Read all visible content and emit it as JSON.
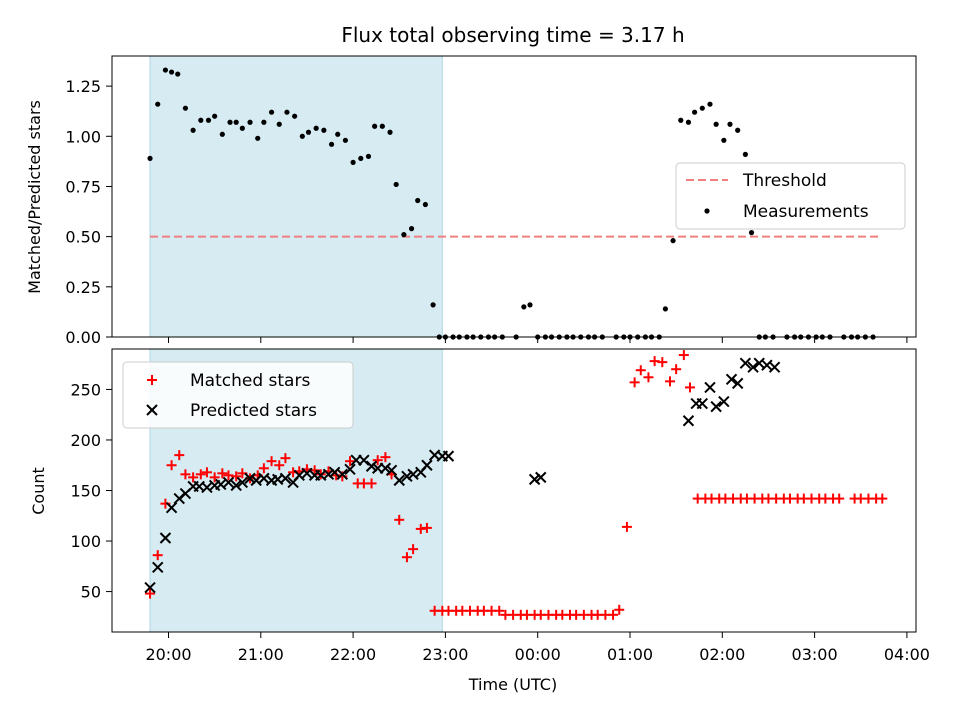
{
  "colors": {
    "shade": "#add8e6",
    "threshold": "#f08080",
    "matched": "#ff0000",
    "predicted": "#000000",
    "measure": "#000000"
  },
  "chart_data": [
    {
      "type": "scatter",
      "title": "Flux total observing time = 3.17 h",
      "xlabel": "",
      "ylabel": "Matched/Predicted stars",
      "ylim": [
        0,
        1.4
      ],
      "yticks": [
        "0.00",
        "0.25",
        "0.50",
        "0.75",
        "1.00",
        "1.25"
      ],
      "shaded_interval": [
        "19:48",
        "22:58"
      ],
      "legend": {
        "placement": "center-right",
        "threshold_label": "Threshold",
        "measurements_label": "Measurements"
      },
      "threshold": {
        "value": 0.5,
        "x_start": "19:48",
        "x_end": "03:42"
      },
      "series": [
        {
          "name": "Measurements",
          "x": [
            "19:48",
            "19:53",
            "19:58",
            "20:02",
            "20:06",
            "20:11",
            "20:16",
            "20:21",
            "20:26",
            "20:30",
            "20:35",
            "20:40",
            "20:44",
            "20:48",
            "20:53",
            "20:58",
            "21:02",
            "21:07",
            "21:12",
            "21:17",
            "21:22",
            "21:27",
            "21:31",
            "21:36",
            "21:41",
            "21:46",
            "21:50",
            "21:55",
            "22:00",
            "22:05",
            "22:10",
            "22:14",
            "22:19",
            "22:24",
            "22:28",
            "22:33",
            "22:38",
            "22:42",
            "22:47",
            "22:52",
            "22:56",
            "23:00",
            "23:05",
            "23:09",
            "23:14",
            "23:18",
            "23:23",
            "23:28",
            "23:32",
            "23:37",
            "23:46",
            "23:51",
            "23:55",
            "00:00",
            "00:05",
            "00:09",
            "00:14",
            "00:19",
            "00:23",
            "00:28",
            "00:33",
            "00:37",
            "00:42",
            "00:51",
            "00:56",
            "01:00",
            "01:05",
            "01:10",
            "01:14",
            "01:19",
            "01:23",
            "01:28",
            "01:33",
            "01:38",
            "01:42",
            "01:47",
            "01:52",
            "01:56",
            "02:01",
            "02:05",
            "02:10",
            "02:15",
            "02:19",
            "02:24",
            "02:28",
            "02:33",
            "02:42",
            "02:47",
            "02:51",
            "02:56",
            "03:01",
            "03:05",
            "03:10",
            "03:19",
            "03:24",
            "03:28",
            "03:33",
            "03:38"
          ],
          "y": [
            0.89,
            1.16,
            1.33,
            1.32,
            1.31,
            1.14,
            1.03,
            1.08,
            1.08,
            1.1,
            1.01,
            1.07,
            1.07,
            1.04,
            1.07,
            0.99,
            1.07,
            1.12,
            1.06,
            1.12,
            1.1,
            1.0,
            1.02,
            1.04,
            1.03,
            0.96,
            1.01,
            0.98,
            0.87,
            0.89,
            0.9,
            1.05,
            1.05,
            1.02,
            0.76,
            0.51,
            0.54,
            0.68,
            0.66,
            0.16,
            0,
            0,
            0,
            0,
            0,
            0,
            0,
            0,
            0,
            0,
            0,
            0.15,
            0.16,
            0,
            0,
            0,
            0,
            0,
            0,
            0,
            0,
            0,
            0,
            0,
            0,
            0,
            0,
            0,
            0,
            0,
            0.14,
            0.48,
            1.08,
            1.07,
            1.12,
            1.14,
            1.16,
            1.06,
            0.98,
            1.06,
            1.03,
            0.91,
            0.52,
            0,
            0,
            0,
            0,
            0,
            0,
            0,
            0,
            0,
            0,
            0,
            0,
            0,
            0,
            0
          ]
        }
      ]
    },
    {
      "type": "scatter",
      "title": "",
      "xlabel": "Time (UTC)",
      "ylabel": "Count",
      "ylim": [
        10,
        290
      ],
      "yticks": [
        "50",
        "100",
        "150",
        "200",
        "250"
      ],
      "xticks": [
        "20:00",
        "21:00",
        "22:00",
        "23:00",
        "00:00",
        "01:00",
        "02:00",
        "03:00",
        "04:00"
      ],
      "shaded_interval": [
        "19:48",
        "22:58"
      ],
      "legend": {
        "placement": "upper-left"
      },
      "series": [
        {
          "name": "Matched stars",
          "x": [
            "19:48",
            "19:53",
            "19:58",
            "20:02",
            "20:07",
            "20:11",
            "20:16",
            "20:21",
            "20:25",
            "20:30",
            "20:35",
            "20:39",
            "20:44",
            "20:48",
            "20:53",
            "20:58",
            "21:02",
            "21:07",
            "21:12",
            "21:16",
            "21:21",
            "21:25",
            "21:30",
            "21:35",
            "21:39",
            "21:44",
            "21:49",
            "21:53",
            "21:58",
            "22:03",
            "22:07",
            "22:12",
            "22:16",
            "22:21",
            "22:25",
            "22:30",
            "22:35",
            "22:39",
            "22:44",
            "22:48",
            "22:53",
            "22:58",
            "23:02",
            "23:07",
            "23:11",
            "23:16",
            "23:21",
            "23:25",
            "23:30",
            "23:35",
            "23:39",
            "23:44",
            "23:49",
            "23:53",
            "23:58",
            "00:02",
            "00:07",
            "00:12",
            "00:16",
            "00:21",
            "00:25",
            "00:30",
            "00:35",
            "00:39",
            "00:44",
            "00:49",
            "00:53",
            "00:58",
            "01:03",
            "01:07",
            "01:12",
            "01:16",
            "01:21",
            "01:26",
            "01:30",
            "01:35",
            "01:39",
            "01:44",
            "01:49",
            "01:53",
            "01:58",
            "02:02",
            "02:07",
            "02:12",
            "02:16",
            "02:21",
            "02:26",
            "02:30",
            "02:35",
            "02:40",
            "02:44",
            "02:49",
            "02:53",
            "02:58",
            "03:03",
            "03:07",
            "03:12",
            "03:16",
            "03:26",
            "03:30",
            "03:35",
            "03:40",
            "03:44"
          ],
          "y": [
            48,
            86,
            137,
            175,
            185,
            166,
            163,
            166,
            168,
            163,
            167,
            165,
            164,
            167,
            162,
            165,
            172,
            179,
            175,
            182,
            168,
            169,
            171,
            170,
            166,
            169,
            165,
            164,
            179,
            157,
            157,
            157,
            180,
            183,
            166,
            121,
            84,
            92,
            112,
            113,
            31,
            31,
            31,
            31,
            31,
            31,
            31,
            31,
            31,
            31,
            27,
            27,
            27,
            27,
            27,
            27,
            27,
            27,
            27,
            27,
            27,
            27,
            27,
            27,
            27,
            27,
            32,
            114,
            257,
            269,
            262,
            278,
            277,
            258,
            270,
            284,
            252,
            142,
            142,
            142,
            142,
            142,
            142,
            142,
            142,
            142,
            142,
            142,
            142,
            142,
            142,
            142,
            142,
            142,
            142,
            142,
            142,
            142,
            142,
            142,
            142,
            142,
            142
          ]
        },
        {
          "name": "Predicted stars",
          "x": [
            "19:48",
            "19:53",
            "19:58",
            "20:02",
            "20:07",
            "20:11",
            "20:16",
            "20:20",
            "20:25",
            "20:30",
            "20:34",
            "20:39",
            "20:44",
            "20:48",
            "20:53",
            "20:57",
            "21:02",
            "21:07",
            "21:11",
            "21:16",
            "21:21",
            "21:25",
            "21:30",
            "21:35",
            "21:39",
            "21:44",
            "21:48",
            "21:53",
            "21:58",
            "22:02",
            "22:07",
            "22:12",
            "22:16",
            "22:21",
            "22:25",
            "22:30",
            "22:35",
            "22:39",
            "22:44",
            "22:48",
            "22:53",
            "22:58",
            "23:02",
            "23:58",
            "00:02",
            "01:38",
            "01:43",
            "01:47",
            "01:52",
            "01:56",
            "02:01",
            "02:06",
            "02:10",
            "02:15",
            "02:20",
            "02:24",
            "02:29",
            "02:34"
          ],
          "y": [
            54,
            74,
            103,
            133,
            142,
            147,
            154,
            154,
            153,
            155,
            156,
            158,
            155,
            158,
            162,
            160,
            162,
            160,
            161,
            162,
            158,
            165,
            167,
            165,
            165,
            166,
            168,
            166,
            171,
            180,
            180,
            174,
            172,
            172,
            170,
            160,
            164,
            166,
            168,
            175,
            185,
            184,
            184,
            161,
            163,
            219,
            236,
            236,
            252,
            233,
            238,
            260,
            256,
            276,
            272,
            276,
            274,
            272
          ]
        }
      ]
    }
  ]
}
